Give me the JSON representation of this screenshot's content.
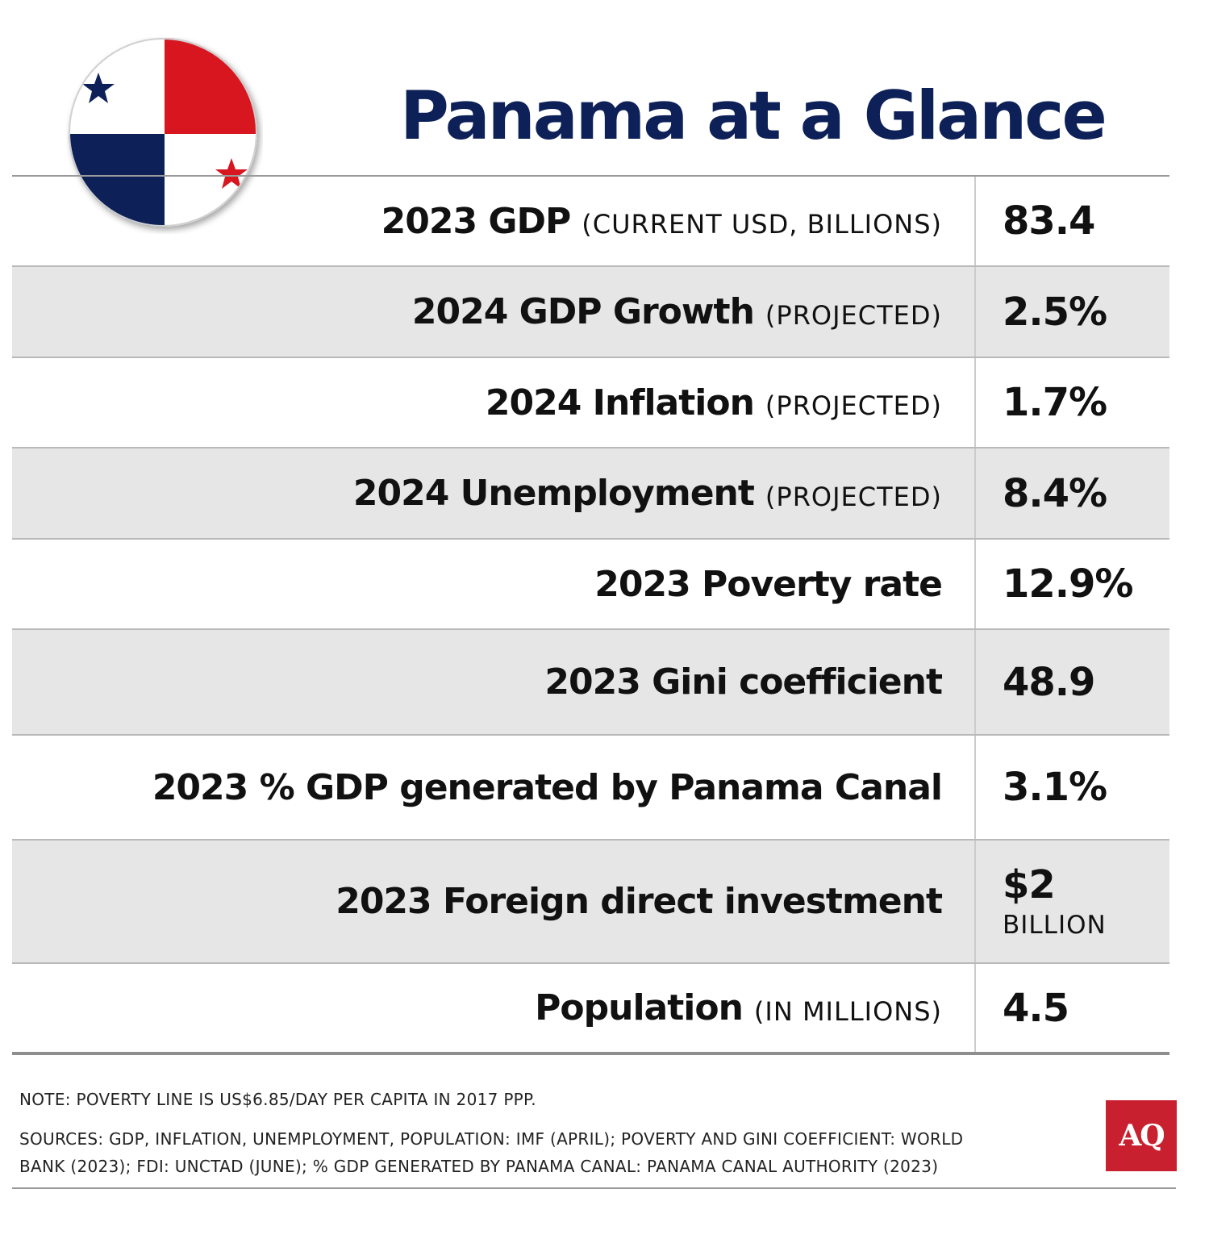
{
  "title": "Panama at a Glance",
  "colors": {
    "navy": "#0d2057",
    "red": "#d7161f",
    "shade": "#e6e6e6"
  },
  "flag_icon": "panama-flag-icon",
  "rows": [
    {
      "label": "2023 GDP",
      "qualifier": "(CURRENT USD, BILLIONS)",
      "value": "83.4",
      "value_note": ""
    },
    {
      "label": "2024 GDP Growth",
      "qualifier": "(PROJECTED)",
      "value": "2.5%",
      "value_note": ""
    },
    {
      "label": "2024 Inflation",
      "qualifier": "(PROJECTED)",
      "value": "1.7%",
      "value_note": ""
    },
    {
      "label": "2024 Unemployment",
      "qualifier": "(PROJECTED)",
      "value": "8.4%",
      "value_note": ""
    },
    {
      "label": "2023 Poverty rate",
      "qualifier": "",
      "value": "12.9%",
      "value_note": ""
    },
    {
      "label": "2023 Gini coefficient",
      "qualifier": "",
      "value": "48.9",
      "value_note": ""
    },
    {
      "label": "2023 % GDP generated by Panama Canal",
      "qualifier": "",
      "value": "3.1%",
      "value_note": ""
    },
    {
      "label": "2023 Foreign direct investment",
      "qualifier": "",
      "value": "$2",
      "value_note": "BILLION"
    },
    {
      "label": "Population",
      "qualifier": "(IN MILLIONS)",
      "value": "4.5",
      "value_note": ""
    }
  ],
  "footer": {
    "note": "NOTE: POVERTY LINE IS US$6.85/DAY PER CAPITA IN 2017 PPP.",
    "sources_line1": "SOURCES: GDP, INFLATION, UNEMPLOYMENT, POPULATION: IMF (APRIL); POVERTY AND GINI COEFFICIENT: WORLD",
    "sources_line2": "BANK (2023); FDI: UNCTAD (JUNE); % GDP GENERATED BY PANAMA CANAL: PANAMA CANAL AUTHORITY (2023)"
  },
  "logo": {
    "text": "AQ",
    "icon": "aq-logo-icon"
  }
}
